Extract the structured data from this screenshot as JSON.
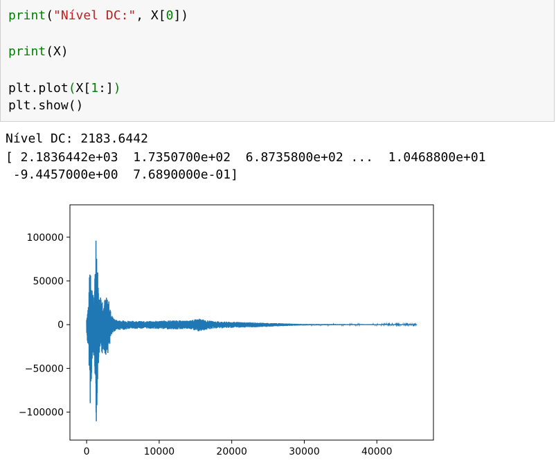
{
  "code": {
    "line1": {
      "fn": "print",
      "open": "(",
      "str": "\"Nível DC:\"",
      "rest_a": ", X[",
      "num": "0",
      "rest_b": "])"
    },
    "line2": {
      "fn": "print",
      "rest": "(X)"
    },
    "line3": {
      "a": "plt.plot",
      "open": "(",
      "b": "X[",
      "num": "1",
      "c": ":]",
      "close": ")"
    },
    "line4": {
      "text": "plt.show()"
    }
  },
  "output": {
    "dc_line": "Nível DC: 2183.6442",
    "array_line1": "[ 2.1836442e+03  1.7350700e+02  6.8735800e+02 ...  1.0468800e+01",
    "array_line2": " -9.4457000e+00  7.6890000e-01]"
  },
  "chart_data": {
    "type": "line",
    "series_color": "#1f77b4",
    "xlim": [
      -2300,
      47800
    ],
    "ylim": [
      -132000,
      137000
    ],
    "x_ticks": [
      0,
      10000,
      20000,
      30000,
      40000
    ],
    "x_tick_labels": [
      "0",
      "10000",
      "20000",
      "30000",
      "40000"
    ],
    "y_ticks": [
      100000,
      50000,
      0,
      -50000,
      -100000
    ],
    "y_tick_labels": [
      "100000",
      "50000",
      "0",
      "−50000",
      "−100000"
    ],
    "envelope": {
      "x": [
        0,
        300,
        500,
        700,
        900,
        1100,
        1300,
        1500,
        1700,
        2000,
        2300,
        2600,
        3000,
        3400,
        3800,
        4200,
        5000,
        6000,
        8000,
        10000,
        12000,
        14000,
        15500,
        16500,
        17500,
        19000,
        21000,
        23000,
        25000,
        27000,
        29000,
        31000,
        35000,
        40000,
        45500
      ],
      "upper": [
        8000,
        30000,
        87000,
        50000,
        35000,
        38000,
        125000,
        70000,
        30000,
        38000,
        25000,
        32000,
        30000,
        12000,
        7000,
        5000,
        5000,
        4500,
        4000,
        4500,
        5000,
        4500,
        7000,
        5000,
        4000,
        3500,
        3000,
        2500,
        2000,
        1500,
        900,
        700,
        600,
        500,
        400
      ],
      "lower": [
        -12000,
        -35000,
        -92000,
        -55000,
        -40000,
        -38000,
        -122000,
        -75000,
        -35000,
        -40000,
        -28000,
        -35000,
        -32000,
        -14000,
        -8000,
        -6000,
        -6000,
        -5000,
        -4500,
        -5000,
        -5500,
        -5000,
        -8000,
        -6000,
        -4500,
        -4000,
        -3500,
        -3000,
        -2500,
        -1800,
        -1000,
        -800,
        -600,
        -500,
        -400
      ]
    }
  }
}
